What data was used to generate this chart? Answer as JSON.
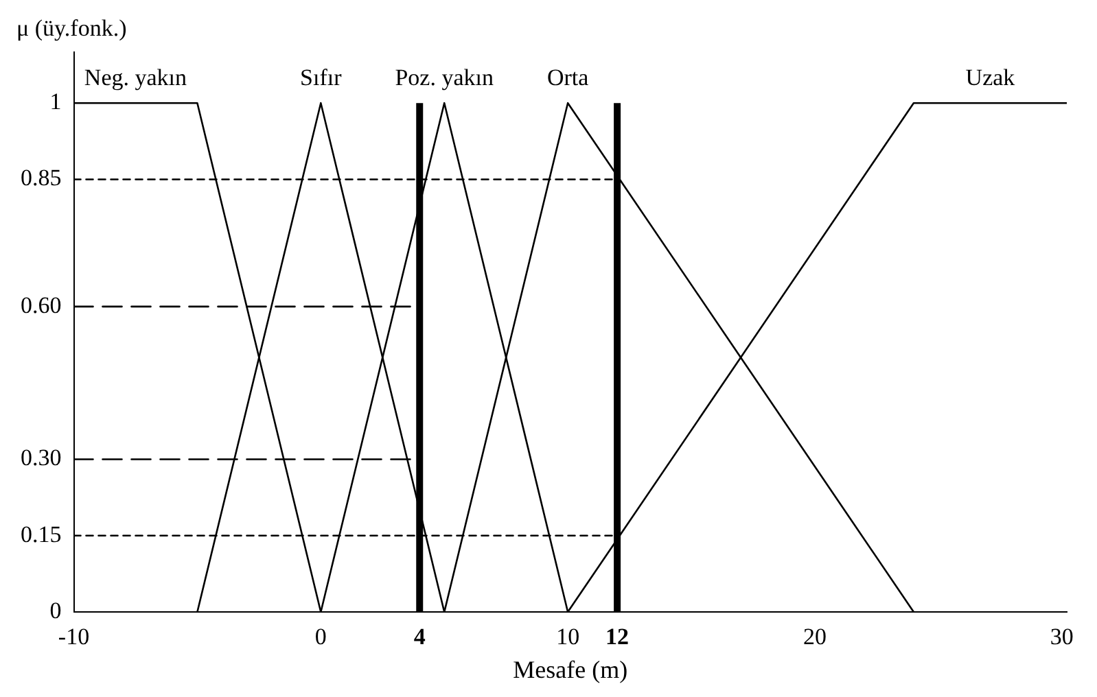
{
  "chart_data": {
    "type": "line",
    "xlabel": "Mesafe (m)",
    "ylabel": "μ (üy.fonk.)",
    "xlim": [
      -10,
      30.2
    ],
    "ylim": [
      0,
      1.1
    ],
    "xticks": [
      -10,
      0,
      4,
      10,
      12,
      20,
      30
    ],
    "yticks": [
      0,
      {
        "value": 0.15,
        "label": "0.15"
      },
      {
        "value": 0.3,
        "label": "0.30"
      },
      {
        "value": 0.6,
        "label": "0.60"
      },
      {
        "value": 0.85,
        "label": "0.85"
      },
      1
    ],
    "grid": false,
    "legend": false,
    "marker": "none",
    "line_style": "solid",
    "series": [
      {
        "name": "Neg. yakın",
        "color": "#000000",
        "x": [
          -10,
          -5,
          0
        ],
        "values": [
          1,
          1,
          0
        ]
      },
      {
        "name": "Sıfır",
        "color": "#000000",
        "x": [
          -5,
          0,
          5
        ],
        "values": [
          0,
          1,
          0
        ]
      },
      {
        "name": "Poz. yakın",
        "color": "#000000",
        "x": [
          0,
          5,
          10
        ],
        "values": [
          0,
          1,
          0
        ]
      },
      {
        "name": "Orta",
        "color": "#000000",
        "x": [
          5,
          10,
          24
        ],
        "values": [
          0,
          1,
          0
        ]
      },
      {
        "name": "Uzak",
        "color": "#000000",
        "x": [
          10,
          24,
          30.2
        ],
        "values": [
          0,
          1,
          1
        ]
      },
      {
        "color": "#000000",
        "line_style": "dashed",
        "x": [
          -10,
          4
        ],
        "values": [
          0.6,
          0.6
        ]
      },
      {
        "color": "#000000",
        "line_style": "dashed",
        "x": [
          -10,
          4
        ],
        "values": [
          0.3,
          0.3
        ]
      },
      {
        "color": "#000000",
        "line_style": "dotted",
        "x": [
          -10,
          12
        ],
        "values": [
          0.85,
          0.85
        ]
      },
      {
        "color": "#000000",
        "line_style": "dotted",
        "x": [
          -10,
          12
        ],
        "values": [
          0.15,
          0.15
        ]
      }
    ],
    "ref_lines": [
      {
        "axis": "x",
        "value": 4,
        "color": "#000000"
      },
      {
        "axis": "x",
        "value": 12,
        "color": "#000000"
      }
    ]
  }
}
